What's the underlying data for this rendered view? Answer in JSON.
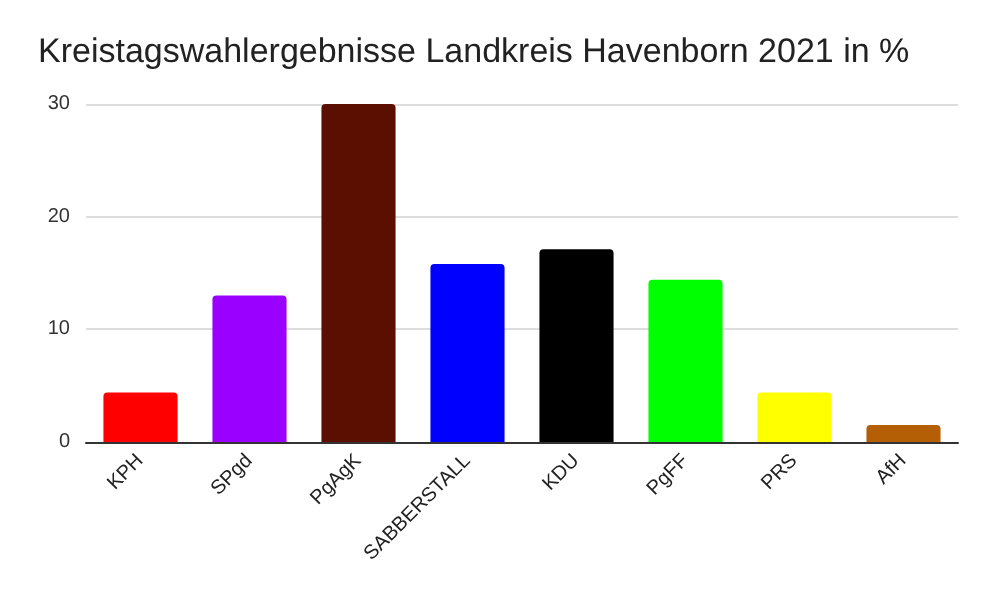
{
  "chart_data": {
    "type": "bar",
    "title": "Kreistagswahlergebnisse Landkreis Havenborn 2021 in %",
    "categories": [
      "KPH",
      "SPgd",
      "PgAgK",
      "SABBERSTALL",
      "KDU",
      "PgFF",
      "PRS",
      "AfH"
    ],
    "values": [
      4.4,
      13.0,
      30,
      15.8,
      17.1,
      14.4,
      4.4,
      1.5
    ],
    "colors": [
      "#ff0000",
      "#9900ff",
      "#5b0f00",
      "#0000ff",
      "#000000",
      "#00ff00",
      "#ffff00",
      "#b45f06"
    ],
    "ylim": [
      0,
      30
    ],
    "yticks": [
      0,
      10,
      20,
      30
    ],
    "grid": "y"
  }
}
